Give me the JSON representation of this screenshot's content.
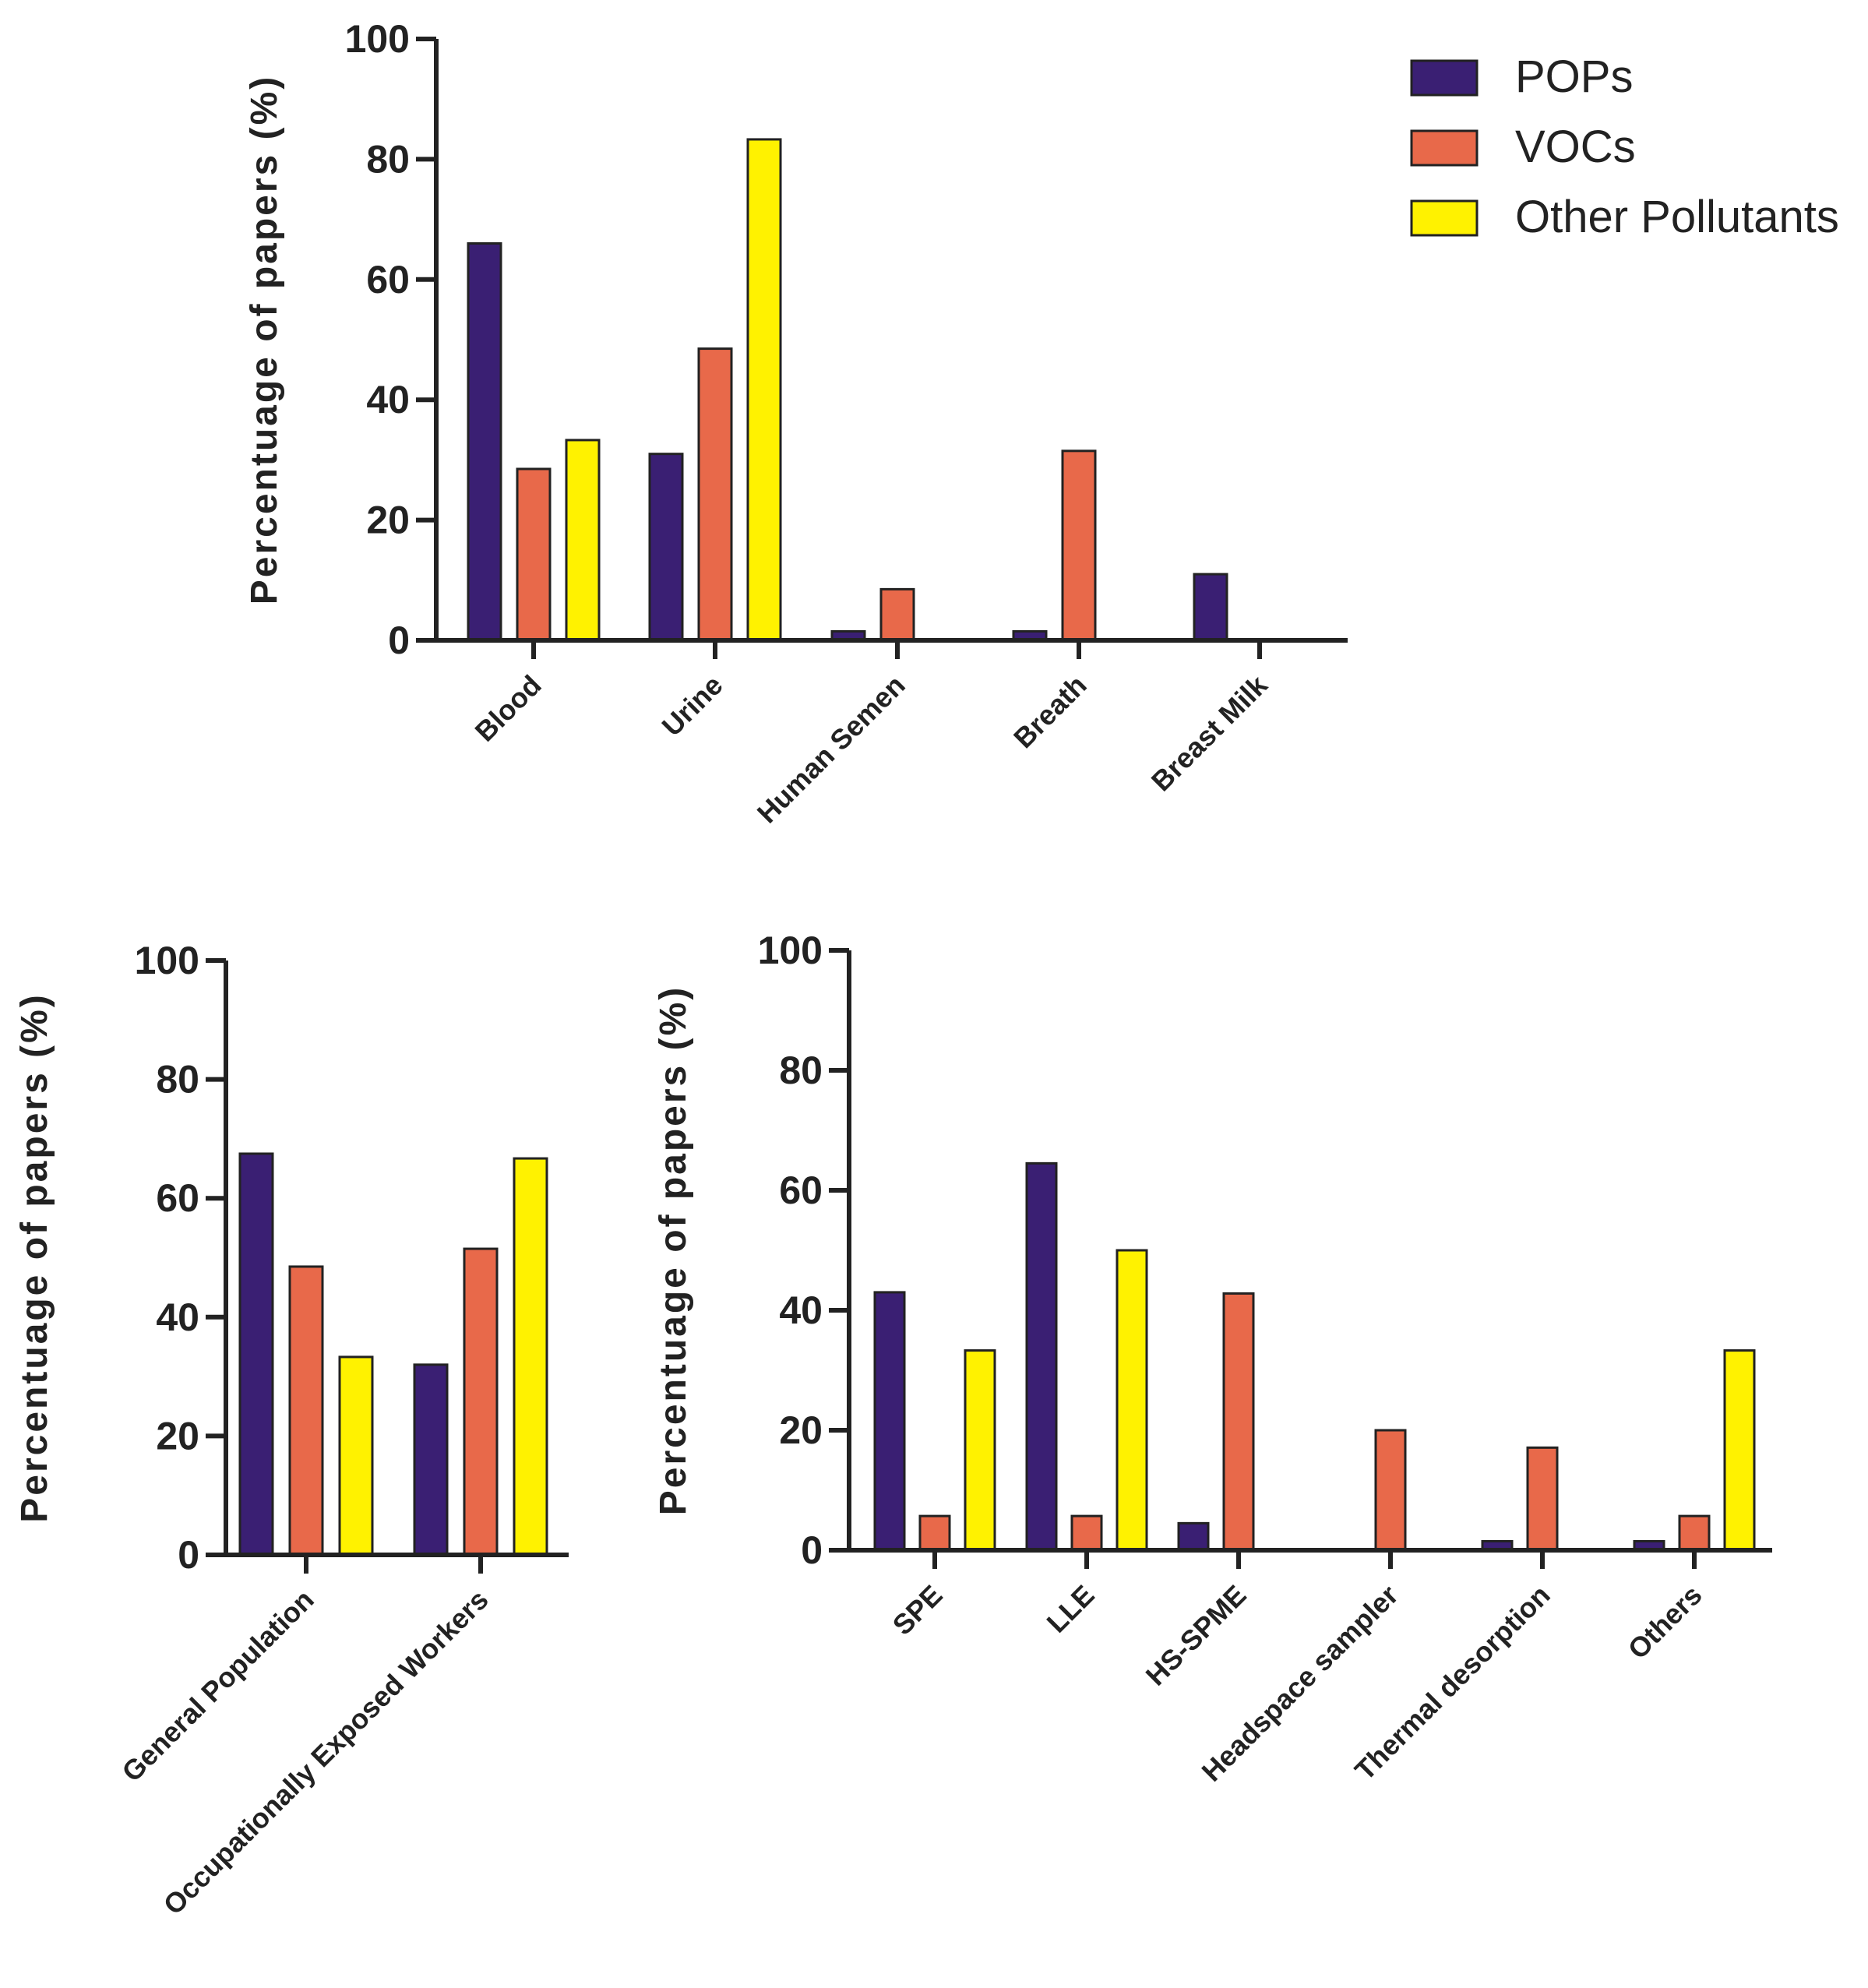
{
  "colors": {
    "POPs": "#3a1f73",
    "VOCs": "#e8694a",
    "Other Pollutants": "#fff200"
  },
  "legend": [
    {
      "label": "POPs",
      "color": "#3a1f73"
    },
    {
      "label": "VOCs",
      "color": "#e8694a"
    },
    {
      "label": "Other Pollutants",
      "color": "#fff200"
    }
  ],
  "chart_data": [
    {
      "type": "bar",
      "title": "",
      "xlabel": "",
      "ylabel": "Percentuage of papers (%)",
      "ylim": [
        0,
        100
      ],
      "yticks": [
        0,
        20,
        40,
        60,
        80,
        100
      ],
      "categories": [
        "Blood",
        "Urine",
        "Human Semen",
        "Breath",
        "Breast Milk"
      ],
      "series": [
        {
          "name": "POPs",
          "values": [
            66,
            31,
            1.5,
            1.5,
            11
          ]
        },
        {
          "name": "VOCs",
          "values": [
            28.5,
            48.5,
            8.5,
            31.5,
            0
          ]
        },
        {
          "name": "Other Pollutants",
          "values": [
            33.3,
            83.3,
            0,
            0,
            0
          ]
        }
      ]
    },
    {
      "type": "bar",
      "title": "",
      "xlabel": "",
      "ylabel": "Percentuage of papers (%)",
      "ylim": [
        0,
        100
      ],
      "yticks": [
        0,
        20,
        40,
        60,
        80,
        100
      ],
      "categories": [
        "General Population",
        "Occupationally Exposed Workers"
      ],
      "series": [
        {
          "name": "POPs",
          "values": [
            67.5,
            32
          ]
        },
        {
          "name": "VOCs",
          "values": [
            48.5,
            51.5
          ]
        },
        {
          "name": "Other Pollutants",
          "values": [
            33.3,
            66.7
          ]
        }
      ]
    },
    {
      "type": "bar",
      "title": "",
      "xlabel": "",
      "ylabel": "Percentuage of papers (%)",
      "ylim": [
        0,
        100
      ],
      "yticks": [
        0,
        20,
        40,
        60,
        80,
        100
      ],
      "categories": [
        "SPE",
        "LLE",
        "HS-SPME",
        "Headspace sampler",
        "Thermal desorption",
        "Others"
      ],
      "series": [
        {
          "name": "POPs",
          "values": [
            43,
            64.5,
            4.5,
            0,
            1.5,
            1.5
          ]
        },
        {
          "name": "VOCs",
          "values": [
            5.7,
            5.7,
            42.8,
            20,
            17.1,
            5.7
          ]
        },
        {
          "name": "Other Pollutants",
          "values": [
            33.3,
            50,
            0,
            0,
            0,
            33.3
          ]
        }
      ]
    }
  ]
}
